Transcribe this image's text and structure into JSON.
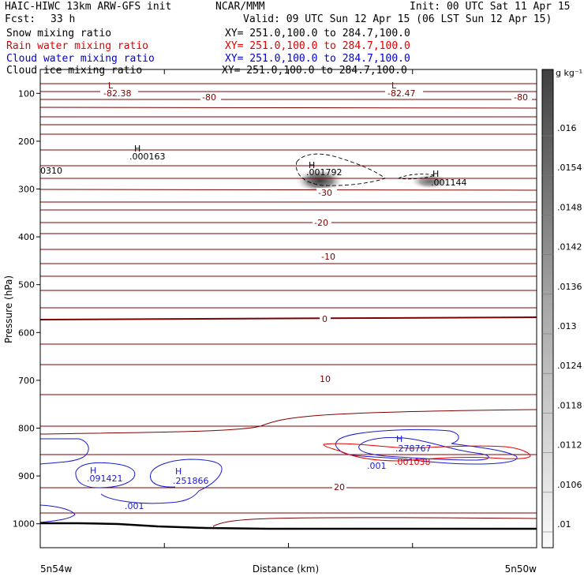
{
  "header": {
    "title_left": "HAIC-HIWC 13km ARW-GFS init",
    "org": "NCAR/MMM",
    "init": "Init: 00 UTC Sat 11 Apr 15",
    "fcst_label": "Fcst:",
    "fcst_value": "33 h",
    "valid": "Valid: 09 UTC Sun 12 Apr 15 (06 LST Sun 12 Apr 15)",
    "fields": [
      {
        "name": "Snow mixing ratio",
        "xy": "XY= 251.0,100.0 to 284.7,100.0",
        "color": "#000000"
      },
      {
        "name": "Rain water mixing ratio",
        "xy": "XY= 251.0,100.0 to 284.7,100.0",
        "color": "#e00000"
      },
      {
        "name": "Cloud water mixing ratio",
        "xy": "XY= 251.0,100.0 to 284.7,100.0",
        "color": "#0000d0"
      },
      {
        "name": "Cloud ice mixing ratio",
        "xy": "XY= 251.0,100.0 to 284.7,100.0",
        "color": "#000000"
      }
    ]
  },
  "colorbar": {
    "unit": "g kg⁻¹",
    "labels": [
      ".016",
      ".0154",
      ".0148",
      ".0142",
      ".0136",
      ".013",
      ".0124",
      ".0118",
      ".0112",
      ".0106",
      ".01"
    ]
  },
  "chart_data": {
    "type": "contour",
    "xlabel": "Distance (km)",
    "ylabel": "Pressure (hPa)",
    "x_ticklabels": [
      "5n54w",
      "5n50w"
    ],
    "ylim": [
      1050,
      50
    ],
    "yticks": [
      100,
      200,
      300,
      400,
      500,
      600,
      700,
      800,
      900,
      1000
    ],
    "temperature_labels": [
      "-82.38",
      "-80",
      "-82.47",
      "-80",
      "-30",
      "-20",
      "-10",
      "0",
      "10",
      "20"
    ],
    "extrema": [
      {
        "type": "L",
        "value": "-82.38"
      },
      {
        "type": "L",
        "value": "-82.47"
      },
      {
        "type": "H",
        "value": ".000163"
      },
      {
        "type": "H",
        "value": ".001792"
      },
      {
        "type": "H",
        "value": ".001144"
      },
      {
        "type": "H",
        "value": ".091421"
      },
      {
        "type": "H",
        "value": ".251866"
      },
      {
        "type": "H",
        "value": ".278767"
      }
    ],
    "other_labels": [
      "0310",
      ".001",
      ".001",
      ".001038"
    ],
    "colors": {
      "temperature": "#800000",
      "cloud_water": "#1a1acc",
      "rain_water": "#e00000",
      "terrain": "#000000"
    }
  }
}
